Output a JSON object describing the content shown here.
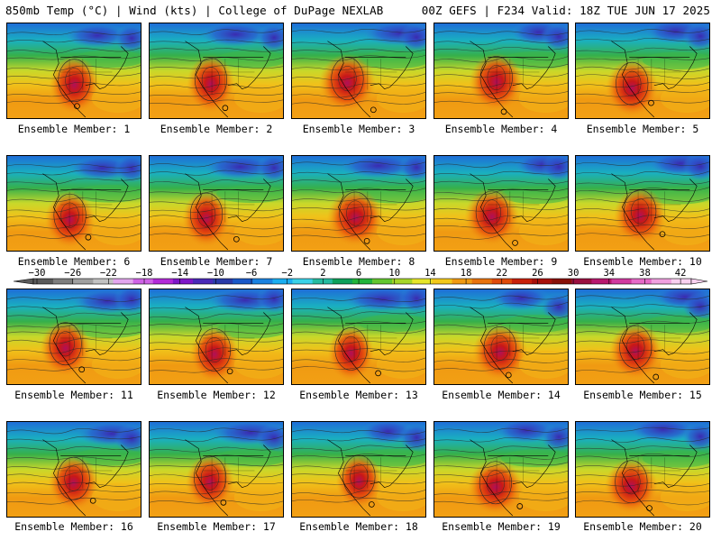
{
  "header": {
    "left": "850mb Temp (°C) | Wind (kts) | College of DuPage NEXLAB",
    "right": "00Z GEFS | F234 Valid: 18Z TUE JUN 17 2025"
  },
  "panel_label_prefix": "Ensemble Member: ",
  "members": [
    1,
    2,
    3,
    4,
    5,
    6,
    7,
    8,
    9,
    10,
    11,
    12,
    13,
    14,
    15,
    16,
    17,
    18,
    19,
    20
  ],
  "colorbar": {
    "tick_labels": [
      "-30",
      "-26",
      "-22",
      "-18",
      "-14",
      "-10",
      "-6",
      "-2",
      "2",
      "6",
      "10",
      "14",
      "18",
      "22",
      "26",
      "30",
      "34",
      "38",
      "42"
    ],
    "colors": [
      "#5a5a5a",
      "#7e7e7e",
      "#a0a0a0",
      "#c2c2c2",
      "#e3a6ee",
      "#cf63e6",
      "#b22ad8",
      "#7e18c8",
      "#4a2ab8",
      "#2a3aa8",
      "#1a58c8",
      "#1a82e0",
      "#1aaef0",
      "#3ad2e8",
      "#24bba0",
      "#0ea05a",
      "#22b43a",
      "#62c62e",
      "#a6d628",
      "#e6e62a",
      "#f2c81a",
      "#f09a12",
      "#e8720c",
      "#e04a0a",
      "#c8200a",
      "#a8100a",
      "#881008",
      "#9a1040",
      "#b8186e",
      "#d03aa0",
      "#e66ac8",
      "#f0a0e0",
      "#f8d0f0"
    ]
  }
}
